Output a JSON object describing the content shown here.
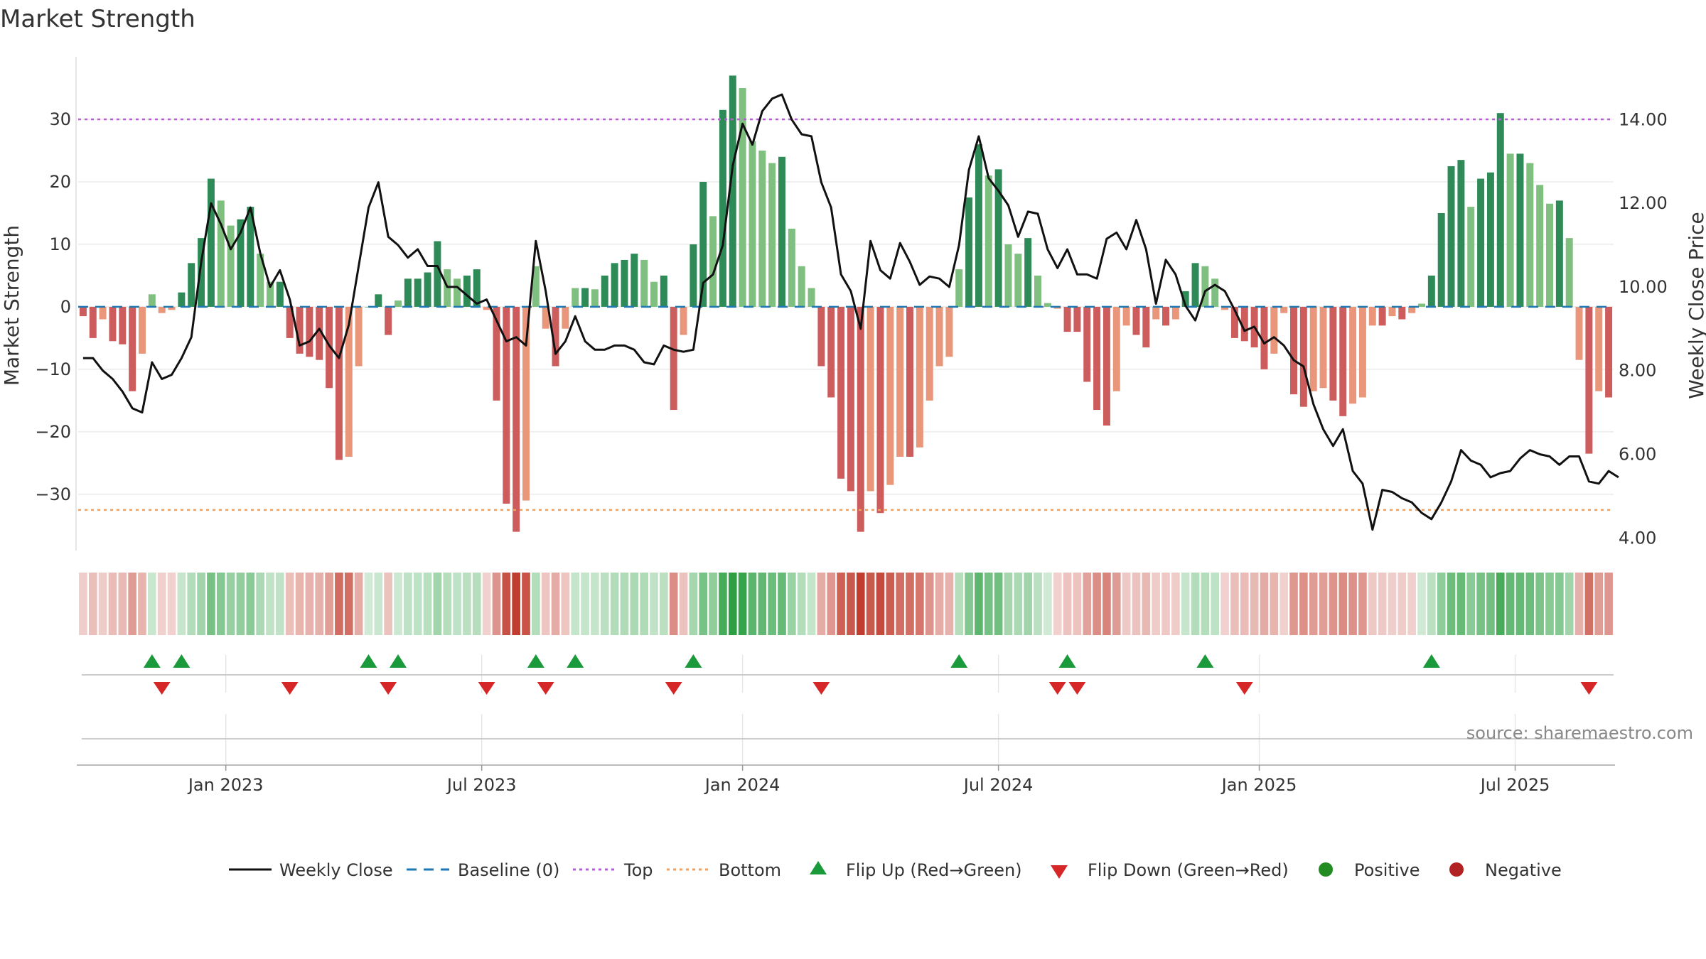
{
  "chart_data": {
    "type": "bar",
    "title": "Market Strength",
    "ylabel_left": "Market Strength",
    "ylabel_right": "Weekly Close Price",
    "ylim_left": [
      -39,
      40
    ],
    "ylim_right": [
      3.7,
      15.5
    ],
    "left_ticks": [
      "30",
      "20",
      "10",
      "0",
      "−10",
      "−20",
      "−30"
    ],
    "left_tick_values": [
      30,
      20,
      10,
      0,
      -10,
      -20,
      -30
    ],
    "right_ticks": [
      "14.00",
      "12.00",
      "10.00",
      "8.00",
      "6.00",
      "4.00"
    ],
    "right_tick_values": [
      14,
      12,
      10,
      8,
      6,
      4
    ],
    "x_ticks": [
      "Jan 2023",
      "Jul 2023",
      "Jan 2024",
      "Jul 2024",
      "Jan 2025",
      "Jul 2025"
    ],
    "x_tick_week_index": [
      15,
      41,
      67.5,
      93.5,
      120,
      146
    ],
    "top_line": 30,
    "bottom_line": -32.5,
    "baseline": 0,
    "strength": [
      -1.5,
      -5,
      -2,
      -5.5,
      -6,
      -13.5,
      -7.5,
      2,
      -1,
      -0.5,
      2.3,
      7,
      11,
      20.5,
      17,
      13,
      14,
      16,
      8.5,
      4,
      4,
      -5,
      -7.5,
      -8,
      -8.5,
      -13,
      -24.5,
      -24,
      -9.5,
      0,
      2,
      -4.5,
      1,
      4.5,
      4.5,
      5.5,
      10.5,
      6,
      4.5,
      5,
      6,
      -0.5,
      -15,
      -31.5,
      -36,
      -31,
      6.5,
      -3.5,
      -9.5,
      -3.5,
      3,
      3,
      2.8,
      5,
      7,
      7.5,
      8.5,
      7.5,
      4,
      5,
      -16.5,
      -4.5,
      10,
      20,
      14.5,
      31.5,
      37,
      35,
      26.5,
      25,
      23,
      24,
      12.5,
      6.5,
      3,
      -9.5,
      -14.5,
      -27.5,
      -29.5,
      -36,
      -29.5,
      -33,
      -28.5,
      -24,
      -24,
      -22.5,
      -15,
      -9.5,
      -8,
      6,
      17.5,
      26,
      21,
      22,
      10,
      8.5,
      11,
      5,
      0.6,
      -0.3,
      -4,
      -4,
      -12,
      -16.5,
      -19,
      -13.5,
      -3,
      -4.5,
      -6.5,
      -2,
      -3,
      -2,
      2.5,
      7,
      6.5,
      4.5,
      -0.5,
      -5,
      -5.5,
      -6.5,
      -10,
      -7.5,
      -1,
      -14,
      -16,
      -13.5,
      -13,
      -15,
      -17.5,
      -15.5,
      -14.5,
      -3,
      -3,
      -1.5,
      -2,
      -1,
      0.5,
      5,
      15,
      22.5,
      23.5,
      16,
      20.5,
      21.5,
      31,
      24.5,
      24.5,
      23,
      19.5,
      16.5,
      17,
      11,
      -8.5,
      -23.5,
      -13.5,
      -14.5
    ],
    "close": [
      8.3,
      8.3,
      8.0,
      7.8,
      7.5,
      7.1,
      7.0,
      8.2,
      7.8,
      7.9,
      8.3,
      8.8,
      10.6,
      12.0,
      11.5,
      10.9,
      11.3,
      11.9,
      10.8,
      10.0,
      10.4,
      9.7,
      8.6,
      8.7,
      9.0,
      8.6,
      8.3,
      9.1,
      10.5,
      11.9,
      12.5,
      11.2,
      11.0,
      10.7,
      10.9,
      10.5,
      10.5,
      10.0,
      10.0,
      9.8,
      9.6,
      9.7,
      9.2,
      8.7,
      8.8,
      8.6,
      11.1,
      9.9,
      8.4,
      8.7,
      9.3,
      8.7,
      8.5,
      8.5,
      8.6,
      8.6,
      8.5,
      8.2,
      8.15,
      8.6,
      8.5,
      8.45,
      8.5,
      10.1,
      10.3,
      11.0,
      12.9,
      13.9,
      13.4,
      14.2,
      14.5,
      14.6,
      14.0,
      13.65,
      13.6,
      12.5,
      11.9,
      10.3,
      9.9,
      9.0,
      11.1,
      10.4,
      10.2,
      11.05,
      10.6,
      10.05,
      10.25,
      10.2,
      10.0,
      11.0,
      12.8,
      13.6,
      12.6,
      12.3,
      11.95,
      11.2,
      11.8,
      11.75,
      10.9,
      10.45,
      10.9,
      10.3,
      10.3,
      10.2,
      11.15,
      11.3,
      10.9,
      11.6,
      10.9,
      9.6,
      10.65,
      10.3,
      9.55,
      9.2,
      9.9,
      10.05,
      9.9,
      9.45,
      8.95,
      9.05,
      8.65,
      8.8,
      8.6,
      8.25,
      8.1,
      7.2,
      6.6,
      6.2,
      6.6,
      5.6,
      5.3,
      4.2,
      5.15,
      5.1,
      4.95,
      4.85,
      4.6,
      4.45,
      4.85,
      5.35,
      6.1,
      5.85,
      5.75,
      5.45,
      5.55,
      5.6,
      5.9,
      6.1,
      6.0,
      5.95,
      5.75,
      5.95,
      5.95,
      5.35,
      5.3,
      5.6,
      5.45
    ],
    "flip_up_week_index": [
      7,
      10,
      29,
      32,
      46,
      50,
      62,
      89,
      100,
      114,
      137
    ],
    "flip_down_week_index": [
      8,
      21,
      31,
      41,
      47,
      60,
      75,
      99,
      101,
      118,
      153
    ],
    "legend": [
      "Weekly Close",
      "Baseline (0)",
      "Top",
      "Bottom",
      "Flip Up (Red→Green)",
      "Flip Down (Green→Red)",
      "Positive",
      "Negative"
    ],
    "colors": {
      "strong_green": "#2e8b57",
      "light_green": "#7fbf7f",
      "strong_red": "#cd5c5c",
      "light_red": "#e9967a",
      "close_line": "#111111",
      "top_line": "#b55fd6",
      "bottom_line": "#f0a060",
      "baseline": "#1f77b4",
      "flip_up": "#1a9a3a",
      "flip_down": "#d62728",
      "positive_dot": "#228b22",
      "negative_dot": "#b22222"
    }
  },
  "source": "source: sharemaestro.com"
}
